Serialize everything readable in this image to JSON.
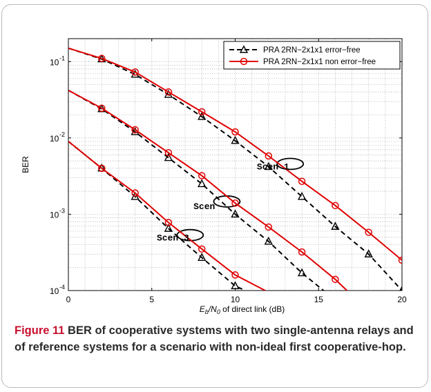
{
  "caption": {
    "label": "Figure 11",
    "text": "BER of cooperative systems with two single-antenna relays and of reference systems for a scenario with non-ideal first cooperative-hop."
  },
  "colors": {
    "error_free": "#000000",
    "non_error_free": "#e00000",
    "frame": "#b9b9b9",
    "caption_label": "#c8102e"
  },
  "chart_data": {
    "type": "line",
    "title": "",
    "xlabel_parts": [
      "E",
      "b",
      "/N",
      "0",
      " of direct link (dB)"
    ],
    "ylabel": "BER",
    "xlim": [
      0,
      20
    ],
    "ylim": [
      0.0001,
      0.2
    ],
    "yscale": "log",
    "xticks": [
      0,
      5,
      10,
      15,
      20
    ],
    "yticks": [
      {
        "value": 0.1,
        "exp": "-1"
      },
      {
        "value": 0.01,
        "exp": "-2"
      },
      {
        "value": 0.001,
        "exp": "-3"
      },
      {
        "value": 0.0001,
        "exp": "-4"
      }
    ],
    "grid": true,
    "legend_position": "top-right",
    "legend": [
      {
        "label": "PRA 2RN−2x1x1 error−free",
        "style": "dashed",
        "marker": "triangle",
        "color": "#000000"
      },
      {
        "label": "PRA 2RN−2x1x1 non error−free",
        "style": "solid",
        "marker": "circle",
        "color": "#e00000"
      }
    ],
    "series": [
      {
        "scenario": 1,
        "variant": "error-free",
        "x": [
          0,
          2,
          4,
          6,
          8,
          10,
          12,
          14,
          16,
          18,
          20
        ],
        "y": [
          0.15,
          0.108,
          0.068,
          0.037,
          0.019,
          0.0092,
          0.0042,
          0.0017,
          0.00069,
          0.0003,
          0.0001
        ]
      },
      {
        "scenario": 1,
        "variant": "non-error-free",
        "x": [
          0,
          2,
          4,
          6,
          8,
          10,
          12,
          14,
          16,
          18,
          20
        ],
        "y": [
          0.15,
          0.11,
          0.073,
          0.04,
          0.022,
          0.012,
          0.0058,
          0.0027,
          0.0013,
          0.00058,
          0.00025
        ]
      },
      {
        "scenario": 2,
        "variant": "error-free",
        "x": [
          0,
          2,
          4,
          6,
          8,
          10,
          12,
          14,
          15.3
        ],
        "y": [
          0.042,
          0.024,
          0.012,
          0.0055,
          0.0025,
          0.001,
          0.00044,
          0.00017,
          0.0001
        ]
      },
      {
        "scenario": 2,
        "variant": "non-error-free",
        "x": [
          0,
          2,
          4,
          6,
          8,
          10,
          12,
          14,
          16,
          16.7
        ],
        "y": [
          0.042,
          0.0245,
          0.0128,
          0.0064,
          0.0032,
          0.0014,
          0.00068,
          0.00032,
          0.00014,
          0.0001
        ]
      },
      {
        "scenario": 3,
        "variant": "error-free",
        "x": [
          0,
          2,
          4,
          6,
          8,
          10,
          10.6
        ],
        "y": [
          0.009,
          0.004,
          0.0017,
          0.00065,
          0.00027,
          0.000115,
          0.0001
        ]
      },
      {
        "scenario": 3,
        "variant": "non-error-free",
        "x": [
          0,
          2,
          4,
          6,
          8,
          10,
          11.8
        ],
        "y": [
          0.009,
          0.004,
          0.0019,
          0.00078,
          0.00035,
          0.00016,
          0.0001
        ]
      }
    ],
    "annotations": [
      {
        "text": "Scen 1",
        "x": 11.3,
        "y": 0.0042
      },
      {
        "text": "Scen",
        "x": 7.5,
        "y": 0.00127
      },
      {
        "text": "Scen 3",
        "x": 5.3,
        "y": 0.00049
      }
    ]
  }
}
